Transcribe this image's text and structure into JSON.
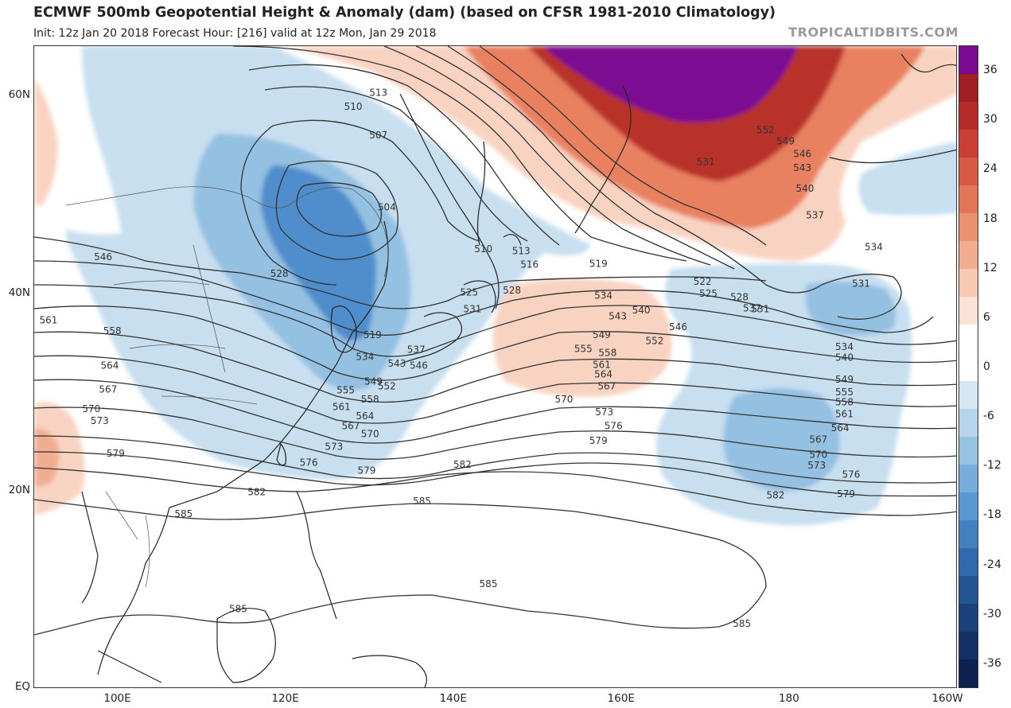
{
  "title": "ECMWF 500mb Geopotential Height & Anomaly (dam) (based on CFSR 1981-2010 Climatology)",
  "subtitle": "Init: 12z Jan 20 2018   Forecast Hour: [216]   valid at 12z Mon, Jan 29 2018",
  "credit": "TROPICALTIDBITS.COM",
  "map": {
    "lon_range": [
      90,
      200
    ],
    "lat_range": [
      0,
      65
    ],
    "lat_labels": [
      "60N",
      "40N",
      "20N",
      "EQ"
    ],
    "lat_values": [
      60,
      40,
      20,
      0
    ],
    "lon_labels": [
      "100E",
      "120E",
      "140E",
      "160E",
      "180",
      "160W"
    ],
    "lon_values": [
      100,
      120,
      140,
      160,
      180,
      200
    ],
    "contour_labels": [
      {
        "text": "513",
        "lon": 131.0,
        "lat": 60.3
      },
      {
        "text": "510",
        "lon": 128.0,
        "lat": 58.9
      },
      {
        "text": "507",
        "lon": 131.0,
        "lat": 56.0
      },
      {
        "text": "504",
        "lon": 132.0,
        "lat": 48.7
      },
      {
        "text": "510",
        "lon": 143.5,
        "lat": 44.5
      },
      {
        "text": "513",
        "lon": 148.0,
        "lat": 44.3
      },
      {
        "text": "516",
        "lon": 149.0,
        "lat": 42.9
      },
      {
        "text": "519",
        "lon": 157.2,
        "lat": 43.0
      },
      {
        "text": "522",
        "lon": 169.6,
        "lat": 41.2
      },
      {
        "text": "525",
        "lon": 170.3,
        "lat": 40.0
      },
      {
        "text": "528",
        "lon": 174.0,
        "lat": 39.6
      },
      {
        "text": "531",
        "lon": 176.5,
        "lat": 38.4
      },
      {
        "text": "531",
        "lon": 188.5,
        "lat": 41.0
      },
      {
        "text": "534",
        "lon": 186.5,
        "lat": 34.6
      },
      {
        "text": "540",
        "lon": 186.5,
        "lat": 33.5
      },
      {
        "text": "546",
        "lon": 98.2,
        "lat": 43.7
      },
      {
        "text": "528",
        "lon": 119.2,
        "lat": 42.0
      },
      {
        "text": "525",
        "lon": 141.8,
        "lat": 40.1
      },
      {
        "text": "528",
        "lon": 146.9,
        "lat": 40.3
      },
      {
        "text": "531",
        "lon": 142.2,
        "lat": 38.4
      },
      {
        "text": "534",
        "lon": 157.8,
        "lat": 39.8
      },
      {
        "text": "540",
        "lon": 162.3,
        "lat": 38.3
      },
      {
        "text": "543",
        "lon": 159.5,
        "lat": 37.7
      },
      {
        "text": "546",
        "lon": 166.7,
        "lat": 36.6
      },
      {
        "text": "549",
        "lon": 157.6,
        "lat": 35.8
      },
      {
        "text": "552",
        "lon": 163.9,
        "lat": 35.2
      },
      {
        "text": "555",
        "lon": 155.4,
        "lat": 34.4
      },
      {
        "text": "558",
        "lon": 158.3,
        "lat": 34.0
      },
      {
        "text": "561",
        "lon": 157.6,
        "lat": 32.8
      },
      {
        "text": "564",
        "lon": 157.8,
        "lat": 31.8
      },
      {
        "text": "567",
        "lon": 158.2,
        "lat": 30.6
      },
      {
        "text": "570",
        "lon": 153.1,
        "lat": 29.3
      },
      {
        "text": "573",
        "lon": 157.9,
        "lat": 28.0
      },
      {
        "text": "576",
        "lon": 159.0,
        "lat": 26.6
      },
      {
        "text": "579",
        "lon": 157.2,
        "lat": 25.1
      },
      {
        "text": "582",
        "lon": 141.0,
        "lat": 22.7
      },
      {
        "text": "585",
        "lon": 136.2,
        "lat": 19.0
      },
      {
        "text": "537",
        "lon": 175.5,
        "lat": 38.5
      },
      {
        "text": "549",
        "lon": 186.5,
        "lat": 31.3
      },
      {
        "text": "555",
        "lon": 186.5,
        "lat": 30.0
      },
      {
        "text": "558",
        "lon": 186.5,
        "lat": 29.0
      },
      {
        "text": "561",
        "lon": 186.5,
        "lat": 27.8
      },
      {
        "text": "564",
        "lon": 186.0,
        "lat": 26.4
      },
      {
        "text": "567",
        "lon": 183.4,
        "lat": 25.2
      },
      {
        "text": "570",
        "lon": 183.4,
        "lat": 23.7
      },
      {
        "text": "573",
        "lon": 183.2,
        "lat": 22.6
      },
      {
        "text": "576",
        "lon": 187.3,
        "lat": 21.7
      },
      {
        "text": "579",
        "lon": 186.7,
        "lat": 19.7
      },
      {
        "text": "582",
        "lon": 178.3,
        "lat": 19.6
      },
      {
        "text": "519",
        "lon": 130.3,
        "lat": 35.8
      },
      {
        "text": "534",
        "lon": 129.4,
        "lat": 33.6
      },
      {
        "text": "537",
        "lon": 135.5,
        "lat": 34.3
      },
      {
        "text": "543",
        "lon": 133.2,
        "lat": 32.9
      },
      {
        "text": "546",
        "lon": 135.8,
        "lat": 32.7
      },
      {
        "text": "549",
        "lon": 130.4,
        "lat": 31.1
      },
      {
        "text": "552",
        "lon": 132.0,
        "lat": 30.6
      },
      {
        "text": "555",
        "lon": 127.1,
        "lat": 30.2
      },
      {
        "text": "558",
        "lon": 130.0,
        "lat": 29.3
      },
      {
        "text": "561",
        "lon": 126.6,
        "lat": 28.5
      },
      {
        "text": "564",
        "lon": 129.4,
        "lat": 27.6
      },
      {
        "text": "567",
        "lon": 127.7,
        "lat": 26.6
      },
      {
        "text": "570",
        "lon": 130.0,
        "lat": 25.8
      },
      {
        "text": "573",
        "lon": 125.7,
        "lat": 24.5
      },
      {
        "text": "576",
        "lon": 122.7,
        "lat": 22.9
      },
      {
        "text": "579",
        "lon": 129.6,
        "lat": 22.1
      },
      {
        "text": "582",
        "lon": 116.5,
        "lat": 19.9
      },
      {
        "text": "585",
        "lon": 107.8,
        "lat": 17.7
      },
      {
        "text": "561",
        "lon": 91.7,
        "lat": 37.3
      },
      {
        "text": "558",
        "lon": 99.3,
        "lat": 36.2
      },
      {
        "text": "564",
        "lon": 99.0,
        "lat": 32.7
      },
      {
        "text": "567",
        "lon": 98.8,
        "lat": 30.3
      },
      {
        "text": "570",
        "lon": 96.8,
        "lat": 28.3
      },
      {
        "text": "573",
        "lon": 97.8,
        "lat": 27.1
      },
      {
        "text": "579",
        "lon": 99.7,
        "lat": 23.8
      },
      {
        "text": "585",
        "lon": 114.3,
        "lat": 8.1
      },
      {
        "text": "585",
        "lon": 144.1,
        "lat": 10.6
      },
      {
        "text": "585",
        "lon": 174.3,
        "lat": 6.6
      },
      {
        "text": "552",
        "lon": 177.1,
        "lat": 56.5
      },
      {
        "text": "549",
        "lon": 179.5,
        "lat": 55.4
      },
      {
        "text": "546",
        "lon": 181.5,
        "lat": 54.1
      },
      {
        "text": "543",
        "lon": 181.5,
        "lat": 52.7
      },
      {
        "text": "540",
        "lon": 181.8,
        "lat": 50.6
      },
      {
        "text": "537",
        "lon": 183.0,
        "lat": 47.9
      },
      {
        "text": "534",
        "lon": 190.0,
        "lat": 44.7
      },
      {
        "text": "531",
        "lon": 170.0,
        "lat": 53.3
      }
    ]
  },
  "colorbar": {
    "ticks": [
      "36",
      "30",
      "24",
      "18",
      "12",
      "6",
      "0",
      "-6",
      "-12",
      "-18",
      "-24",
      "-30",
      "-36"
    ],
    "tick_values": [
      36,
      30,
      24,
      18,
      12,
      6,
      0,
      -6,
      -12,
      -18,
      -24,
      -30,
      -36
    ],
    "range": [
      -39,
      39
    ],
    "colors": [
      "#7a0a8f",
      "#9e1f24",
      "#b72b2b",
      "#c94036",
      "#d65a45",
      "#e27658",
      "#ea9172",
      "#f1ad92",
      "#f7c8b3",
      "#fbe2d6",
      "#ffffff",
      "#ffffff",
      "#d4e7f3",
      "#b7d5ea",
      "#97c2e0",
      "#78addb",
      "#5b97d0",
      "#4581c0",
      "#3069ad",
      "#235593",
      "#1a417a",
      "#132f63",
      "#0d2050"
    ]
  },
  "anomaly_colors": {
    "negative_weak": "#c8dff0",
    "negative_mid": "#94c0e2",
    "negative_strong": "#4f8dcc",
    "positive_weak": "#f9d3c2",
    "positive_mid": "#e98060",
    "positive_strong": "#b8302c",
    "positive_extreme": "#7c0c92"
  }
}
